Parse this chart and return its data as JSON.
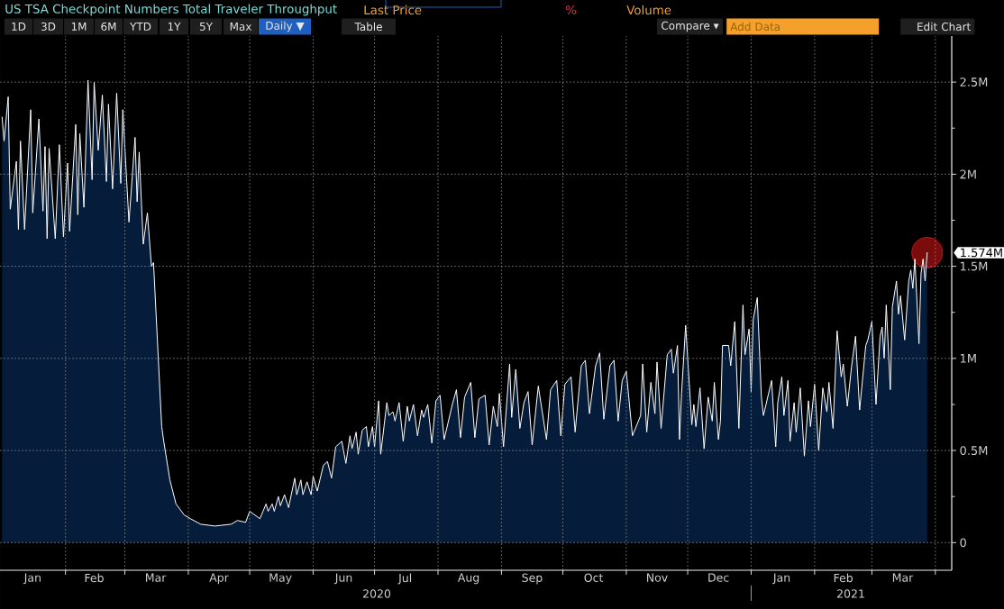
{
  "chart_data": {
    "type": "area",
    "title": "US TSA Checkpoint Numbers Total Traveler Throughput",
    "annotations": [
      "Last Price",
      "%",
      "Volume",
      "1D",
      "3D",
      "1M",
      "6M",
      "YTD",
      "1Y",
      "5Y",
      "Max",
      "Daily ▼",
      "Table",
      "Compare ▾",
      "Add Data",
      "Edit Chart",
      "2020",
      "2021",
      {
        "text": "1.574M",
        "x": "2021-03-28",
        "y": 1574000
      }
    ],
    "x": [
      "2020-01-01",
      "2020-01-02",
      "2020-01-04",
      "2020-01-05",
      "2020-01-08",
      "2020-01-09",
      "2020-01-10",
      "2020-01-12",
      "2020-01-15",
      "2020-01-16",
      "2020-01-19",
      "2020-01-21",
      "2020-01-22",
      "2020-01-23",
      "2020-01-24",
      "2020-01-27",
      "2020-01-29",
      "2020-01-31",
      "2020-02-02",
      "2020-02-03",
      "2020-02-06",
      "2020-02-07",
      "2020-02-08",
      "2020-02-10",
      "2020-02-12",
      "2020-02-14",
      "2020-02-15",
      "2020-02-17",
      "2020-02-19",
      "2020-02-21",
      "2020-02-22",
      "2020-02-24",
      "2020-02-26",
      "2020-02-28",
      "2020-02-29",
      "2020-03-03",
      "2020-03-06",
      "2020-03-07",
      "2020-03-08",
      "2020-03-10",
      "2020-03-12",
      "2020-03-14",
      "2020-03-15",
      "2020-03-19",
      "2020-03-20",
      "2020-03-23",
      "2020-03-26",
      "2020-03-30",
      "2020-04-02",
      "2020-04-07",
      "2020-04-14",
      "2020-04-22",
      "2020-04-25",
      "2020-04-29",
      "2020-05-01",
      "2020-05-06",
      "2020-05-09",
      "2020-05-10",
      "2020-05-12",
      "2020-05-13",
      "2020-05-15",
      "2020-05-16",
      "2020-05-18",
      "2020-05-20",
      "2020-05-23",
      "2020-05-24",
      "2020-05-26",
      "2020-05-27",
      "2020-05-29",
      "2020-05-31",
      "2020-06-01",
      "2020-06-03",
      "2020-06-06",
      "2020-06-08",
      "2020-06-10",
      "2020-06-12",
      "2020-06-15",
      "2020-06-17",
      "2020-06-19",
      "2020-06-20",
      "2020-06-22",
      "2020-06-23",
      "2020-06-25",
      "2020-06-27",
      "2020-06-28",
      "2020-06-30",
      "2020-07-01",
      "2020-07-03",
      "2020-07-04",
      "2020-07-07",
      "2020-07-08",
      "2020-07-10",
      "2020-07-11",
      "2020-07-13",
      "2020-07-15",
      "2020-07-17",
      "2020-07-18",
      "2020-07-20",
      "2020-07-22",
      "2020-07-24",
      "2020-07-25",
      "2020-07-27",
      "2020-07-29",
      "2020-07-31",
      "2020-08-02",
      "2020-08-04",
      "2020-08-08",
      "2020-08-10",
      "2020-08-12",
      "2020-08-14",
      "2020-08-17",
      "2020-08-19",
      "2020-08-21",
      "2020-08-24",
      "2020-08-26",
      "2020-08-28",
      "2020-08-30",
      "2020-08-31",
      "2020-09-02",
      "2020-09-05",
      "2020-09-06",
      "2020-09-08",
      "2020-09-10",
      "2020-09-12",
      "2020-09-14",
      "2020-09-16",
      "2020-09-19",
      "2020-09-23",
      "2020-09-25",
      "2020-09-28",
      "2020-09-30",
      "2020-10-02",
      "2020-10-05",
      "2020-10-07",
      "2020-10-10",
      "2020-10-12",
      "2020-10-14",
      "2020-10-17",
      "2020-10-19",
      "2020-10-21",
      "2020-10-24",
      "2020-10-26",
      "2020-10-28",
      "2020-10-30",
      "2020-11-01",
      "2020-11-04",
      "2020-11-08",
      "2020-11-09",
      "2020-11-11",
      "2020-11-13",
      "2020-11-15",
      "2020-11-16",
      "2020-11-18",
      "2020-11-21",
      "2020-11-23",
      "2020-11-24",
      "2020-11-26",
      "2020-11-27",
      "2020-11-28",
      "2020-11-30",
      "2020-12-03",
      "2020-12-04",
      "2020-12-05",
      "2020-12-07",
      "2020-12-09",
      "2020-12-11",
      "2020-12-13",
      "2020-12-14",
      "2020-12-16",
      "2020-12-17",
      "2020-12-18",
      "2020-12-21",
      "2020-12-22",
      "2020-12-24",
      "2020-12-26",
      "2020-12-28",
      "2020-12-29",
      "2020-12-31",
      "2021-01-01",
      "2021-01-02",
      "2021-01-04",
      "2021-01-06",
      "2021-01-07",
      "2021-01-11",
      "2021-01-13",
      "2021-01-14",
      "2021-01-16",
      "2021-01-17",
      "2021-01-19",
      "2021-01-20",
      "2021-01-22",
      "2021-01-23",
      "2021-01-25",
      "2021-01-27",
      "2021-01-29",
      "2021-01-30",
      "2021-02-01",
      "2021-02-03",
      "2021-02-05",
      "2021-02-07",
      "2021-02-08",
      "2021-02-10",
      "2021-02-12",
      "2021-02-14",
      "2021-02-15",
      "2021-02-17",
      "2021-02-19",
      "2021-02-21",
      "2021-02-23",
      "2021-02-26",
      "2021-02-27",
      "2021-03-01",
      "2021-03-03",
      "2021-03-05",
      "2021-03-06",
      "2021-03-07",
      "2021-03-08",
      "2021-03-10",
      "2021-03-11",
      "2021-03-13",
      "2021-03-14",
      "2021-03-15",
      "2021-03-17",
      "2021-03-19",
      "2021-03-20",
      "2021-03-21",
      "2021-03-22",
      "2021-03-24",
      "2021-03-25",
      "2021-03-26",
      "2021-03-27",
      "2021-03-28"
    ],
    "values": [
      2310000,
      2180000,
      2420000,
      1810000,
      2070000,
      1700000,
      2180000,
      1700000,
      2350000,
      1790000,
      2300000,
      1800000,
      2150000,
      1650000,
      2140000,
      1650000,
      2160000,
      1660000,
      2060000,
      1690000,
      2270000,
      1780000,
      2220000,
      1820000,
      2510000,
      1970000,
      2500000,
      2130000,
      2430000,
      1960000,
      2380000,
      1920000,
      2440000,
      1950000,
      2350000,
      1740000,
      2200000,
      1850000,
      2120000,
      1620000,
      1790000,
      1500000,
      1520000,
      630000,
      550000,
      340000,
      210000,
      150000,
      130000,
      100000,
      90000,
      100000,
      120000,
      110000,
      170000,
      130000,
      210000,
      170000,
      210000,
      170000,
      250000,
      200000,
      260000,
      190000,
      350000,
      260000,
      340000,
      260000,
      330000,
      260000,
      360000,
      280000,
      420000,
      440000,
      350000,
      520000,
      550000,
      430000,
      580000,
      510000,
      600000,
      480000,
      610000,
      630000,
      520000,
      630000,
      520000,
      770000,
      480000,
      760000,
      690000,
      710000,
      660000,
      760000,
      550000,
      740000,
      660000,
      750000,
      580000,
      720000,
      680000,
      750000,
      540000,
      770000,
      800000,
      560000,
      750000,
      830000,
      570000,
      790000,
      870000,
      570000,
      780000,
      800000,
      530000,
      740000,
      630000,
      810000,
      520000,
      970000,
      680000,
      940000,
      620000,
      760000,
      820000,
      530000,
      850000,
      560000,
      830000,
      880000,
      580000,
      860000,
      900000,
      600000,
      960000,
      990000,
      700000,
      960000,
      1030000,
      670000,
      960000,
      990000,
      660000,
      880000,
      930000,
      580000,
      690000,
      970000,
      600000,
      870000,
      700000,
      980000,
      620000,
      1020000,
      1050000,
      920000,
      1070000,
      560000,
      810000,
      1180000,
      640000,
      750000,
      630000,
      840000,
      510000,
      790000,
      660000,
      870000,
      560000,
      660000,
      1070000,
      1070000,
      960000,
      1200000,
      620000,
      1290000,
      1020000,
      1160000,
      820000,
      1210000,
      1330000,
      790000,
      690000,
      880000,
      520000,
      760000,
      900000,
      690000,
      880000,
      550000,
      760000,
      600000,
      840000,
      470000,
      770000,
      630000,
      860000,
      500000,
      840000,
      710000,
      870000,
      620000,
      1150000,
      900000,
      970000,
      740000,
      950000,
      1120000,
      720000,
      1070000,
      1100000,
      1200000,
      750000,
      1120000,
      1170000,
      1000000,
      1290000,
      830000,
      1280000,
      1420000,
      1240000,
      1340000,
      1100000,
      1420000,
      1480000,
      1380000,
      1540000,
      1080000,
      1460000,
      1540000,
      1420000,
      1574000
    ],
    "color": "#051d3a",
    "xlim": [
      "2019-12-31",
      "2021-04-09"
    ],
    "xticks": [
      {
        "value": "2020-01-16",
        "label": "Jan"
      },
      {
        "value": "2020-02-01",
        "label": null
      },
      {
        "value": "2020-02-15",
        "label": "Feb"
      },
      {
        "value": "2020-03-01",
        "label": null
      },
      {
        "value": "2020-03-16",
        "label": "Mar"
      },
      {
        "value": "2020-04-01",
        "label": null
      },
      {
        "value": "2020-04-16",
        "label": "Apr"
      },
      {
        "value": "2020-05-01",
        "label": null
      },
      {
        "value": "2020-05-16",
        "label": "May"
      },
      {
        "value": "2020-06-01",
        "label": null
      },
      {
        "value": "2020-06-16",
        "label": "Jun"
      },
      {
        "value": "2020-07-01",
        "label": null
      },
      {
        "value": "2020-07-16",
        "label": "Jul"
      },
      {
        "value": "2020-08-01",
        "label": null
      },
      {
        "value": "2020-08-16",
        "label": "Aug"
      },
      {
        "value": "2020-09-01",
        "label": null
      },
      {
        "value": "2020-09-16",
        "label": "Sep"
      },
      {
        "value": "2020-10-01",
        "label": null
      },
      {
        "value": "2020-10-16",
        "label": "Oct"
      },
      {
        "value": "2020-11-01",
        "label": null
      },
      {
        "value": "2020-11-16",
        "label": "Nov"
      },
      {
        "value": "2020-12-01",
        "label": null
      },
      {
        "value": "2020-12-16",
        "label": "Dec"
      },
      {
        "value": "2021-01-01",
        "label": null
      },
      {
        "value": "2021-01-16",
        "label": "Jan"
      },
      {
        "value": "2021-02-01",
        "label": null
      },
      {
        "value": "2021-02-15",
        "label": "Feb"
      },
      {
        "value": "2021-03-01",
        "label": null
      },
      {
        "value": "2021-03-16",
        "label": "Mar"
      },
      {
        "value": "2021-04-01",
        "label": null
      }
    ],
    "ylim": [
      -150000,
      2750000
    ],
    "yticks": [
      0,
      {
        "value": 250000,
        "label": null
      },
      {
        "value": 500000,
        "label": "0.5M"
      },
      {
        "value": 750000,
        "label": null
      },
      {
        "value": 1000000,
        "label": "1M"
      },
      {
        "value": 1250000,
        "label": null
      },
      {
        "value": 1500000,
        "label": "1.5M"
      },
      {
        "value": 1750000,
        "label": null
      },
      {
        "value": 2000000,
        "label": "2M"
      },
      {
        "value": 2250000,
        "label": null
      },
      {
        "value": 2500000,
        "label": "2.5M"
      }
    ],
    "grid": true
  }
}
